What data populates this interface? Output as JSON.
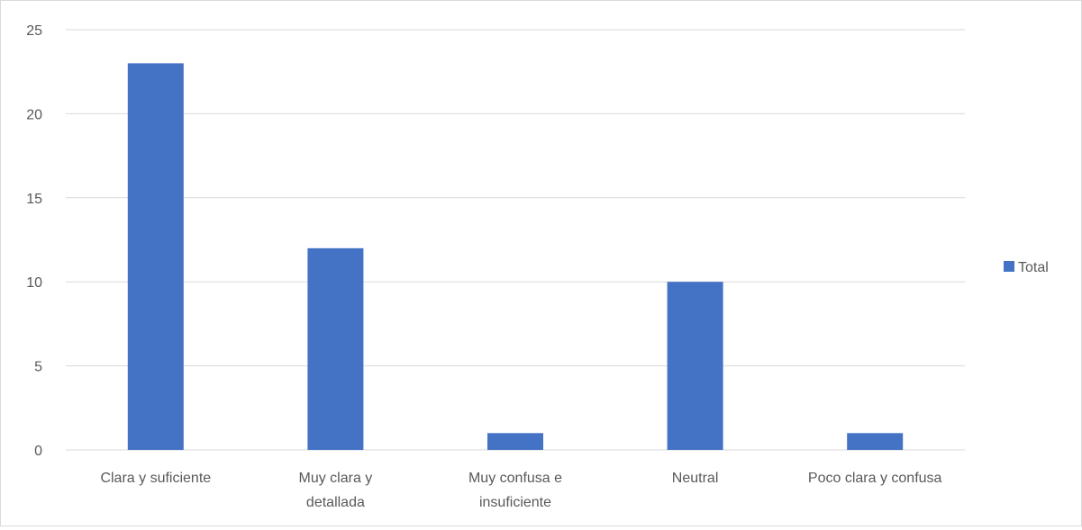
{
  "chart_data": {
    "type": "bar",
    "categories": [
      "Clara y suficiente",
      "Muy clara y detallada",
      "Muy confusa e insuficiente",
      "Neutral",
      "Poco clara y confusa"
    ],
    "category_lines": [
      [
        "Clara y suficiente"
      ],
      [
        "Muy clara y",
        "detallada"
      ],
      [
        "Muy confusa e",
        "insuficiente"
      ],
      [
        "Neutral"
      ],
      [
        "Poco clara y confusa"
      ]
    ],
    "series": [
      {
        "name": "Total",
        "values": [
          23,
          12,
          1,
          10,
          1
        ]
      }
    ],
    "ylim": [
      0,
      25
    ],
    "yticks": [
      0,
      5,
      10,
      15,
      20,
      25
    ],
    "grid": true,
    "legend": "right",
    "colors": {
      "bar": "#4472c4",
      "grid": "#d9d9d9",
      "text": "#595959"
    }
  }
}
